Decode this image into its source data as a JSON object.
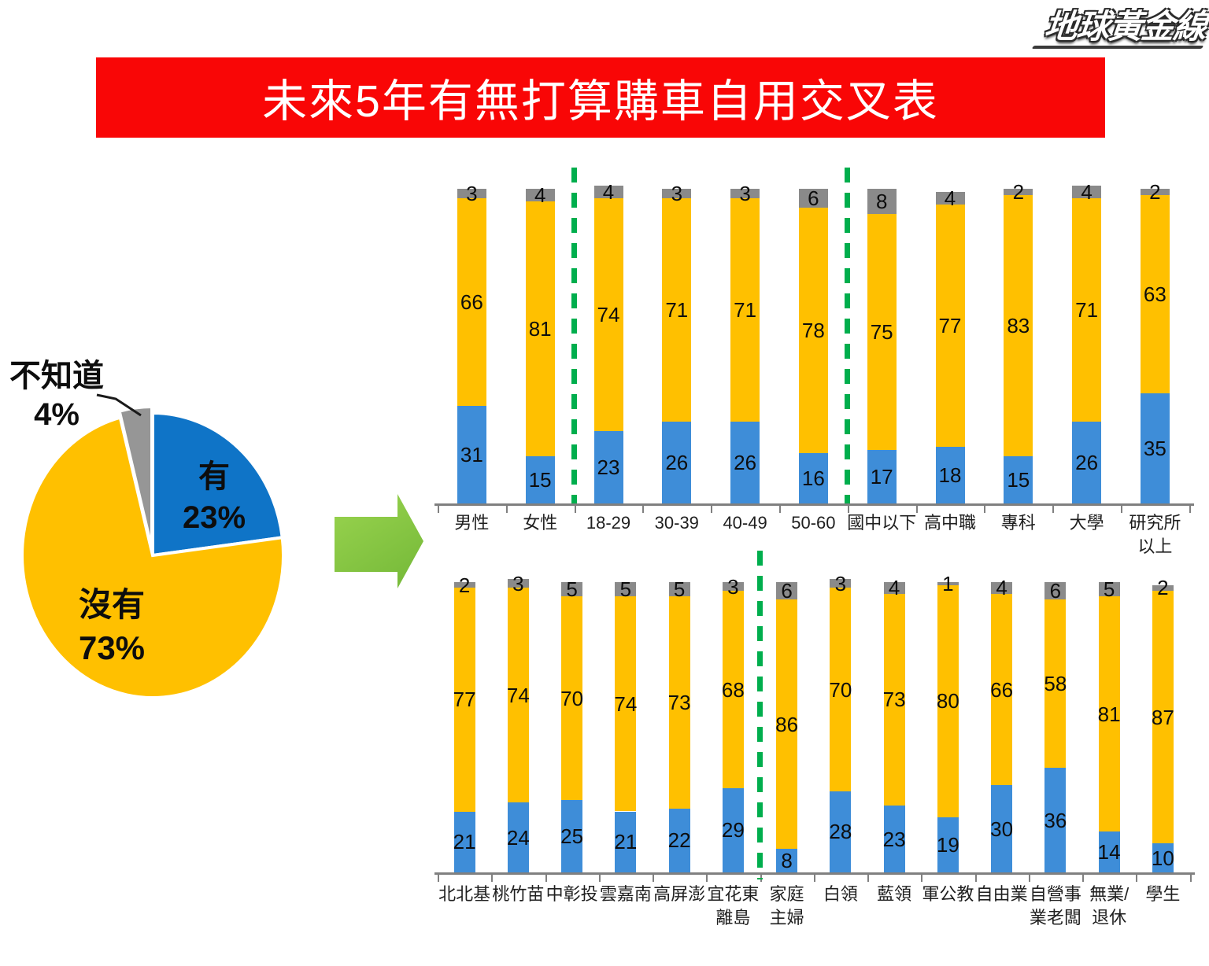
{
  "logo": {
    "text": "地球黃金線"
  },
  "banner": {
    "title": "未來5年有無打算購車自用交叉表"
  },
  "colors": {
    "banner_bg": "#F90606",
    "banner_text": "#FFFFFF",
    "bar_yes": "#3E8DD8",
    "bar_no": "#FFC000",
    "bar_dk": "#8A8A8A",
    "pie_yes": "#0F74C7",
    "pie_no": "#FFC000",
    "pie_dk": "#969696",
    "separator_green": "#00AE4D",
    "axis_gray": "#808080",
    "arrow_green": "#85C441",
    "label_black": "#0D0D0D"
  },
  "chart_data": [
    {
      "type": "pie",
      "title": "未來5年有無打算購車自用",
      "slices": [
        {
          "label": "有",
          "pct": 23,
          "color_key": "pie_yes"
        },
        {
          "label": "沒有",
          "pct": 73,
          "color_key": "pie_no"
        },
        {
          "label": "不知道",
          "pct": 4,
          "color_key": "pie_dk"
        }
      ],
      "start_angle_deg": 0,
      "direction": "clockwise",
      "callout": {
        "slice": "不知道"
      }
    },
    {
      "type": "bar",
      "stacked": true,
      "orientation": "vertical",
      "ylim": [
        0,
        100
      ],
      "grid": false,
      "legend": "none",
      "categories": [
        "男性",
        "女性",
        "18-29",
        "30-39",
        "40-49",
        "50-60",
        "國中以下",
        "高中職",
        "專科",
        "大學",
        "研究所\n以上"
      ],
      "series": [
        {
          "name": "有",
          "color_key": "bar_yes",
          "values": [
            31,
            15,
            23,
            26,
            26,
            16,
            17,
            18,
            15,
            26,
            35
          ]
        },
        {
          "name": "沒有",
          "color_key": "bar_no",
          "values": [
            66,
            81,
            74,
            71,
            71,
            78,
            75,
            77,
            83,
            71,
            63
          ]
        },
        {
          "name": "不知道",
          "color_key": "bar_dk",
          "values": [
            3,
            4,
            4,
            3,
            3,
            6,
            8,
            4,
            2,
            4,
            2
          ]
        }
      ],
      "separator_boundaries": [
        2,
        6
      ]
    },
    {
      "type": "bar",
      "stacked": true,
      "orientation": "vertical",
      "ylim": [
        0,
        100
      ],
      "grid": false,
      "legend": "none",
      "categories": [
        "北北基",
        "桃竹苗",
        "中彰投",
        "雲嘉南",
        "高屏澎",
        "宜花東\n離島",
        "家庭\n主婦",
        "白領",
        "藍領",
        "軍公教",
        "自由業",
        "自營事\n業老闆",
        "無業/\n退休",
        "學生"
      ],
      "series": [
        {
          "name": "有",
          "color_key": "bar_yes",
          "values": [
            21,
            24,
            25,
            21,
            22,
            29,
            8,
            28,
            23,
            19,
            30,
            36,
            14,
            10
          ]
        },
        {
          "name": "沒有",
          "color_key": "bar_no",
          "values": [
            77,
            74,
            70,
            74,
            73,
            68,
            86,
            70,
            73,
            80,
            66,
            58,
            81,
            87
          ]
        },
        {
          "name": "不知道",
          "color_key": "bar_dk",
          "values": [
            2,
            3,
            5,
            5,
            5,
            3,
            6,
            3,
            4,
            1,
            4,
            6,
            5,
            2
          ]
        }
      ],
      "separator_boundaries": [
        6
      ]
    }
  ]
}
